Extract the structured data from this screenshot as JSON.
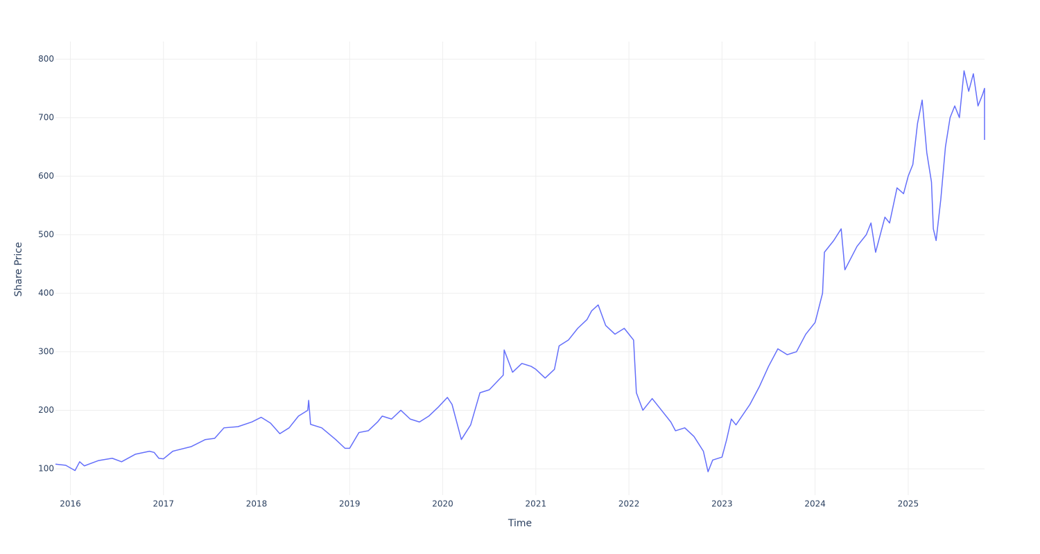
{
  "chart_data": {
    "type": "line",
    "x_label": "Time",
    "y_label": "Share Price",
    "xlim": [
      2015.84,
      2025.82
    ],
    "xticks": [
      2016,
      2017,
      2018,
      2019,
      2020,
      2021,
      2022,
      2023,
      2024,
      2025
    ],
    "ylim": [
      55,
      830
    ],
    "yticks": [
      100,
      200,
      300,
      400,
      500,
      600,
      700,
      800
    ],
    "grid": true,
    "series": [
      {
        "color": "#636efa",
        "x": [
          2015.84,
          2015.95,
          2016.05,
          2016.1,
          2016.15,
          2016.3,
          2016.45,
          2016.55,
          2016.7,
          2016.85,
          2016.9,
          2016.95,
          2017.0,
          2017.1,
          2017.3,
          2017.45,
          2017.55,
          2017.65,
          2017.8,
          2017.95,
          2018.05,
          2018.15,
          2018.25,
          2018.35,
          2018.45,
          2018.55,
          2018.56,
          2018.58,
          2018.7,
          2018.85,
          2018.95,
          2019.0,
          2019.1,
          2019.2,
          2019.3,
          2019.35,
          2019.45,
          2019.55,
          2019.65,
          2019.75,
          2019.85,
          2019.95,
          2020.05,
          2020.1,
          2020.2,
          2020.3,
          2020.4,
          2020.5,
          2020.65,
          2020.66,
          2020.75,
          2020.85,
          2020.95,
          2021.0,
          2021.1,
          2021.2,
          2021.25,
          2021.35,
          2021.45,
          2021.55,
          2021.6,
          2021.67,
          2021.75,
          2021.85,
          2021.95,
          2022.05,
          2022.08,
          2022.15,
          2022.25,
          2022.35,
          2022.45,
          2022.5,
          2022.6,
          2022.7,
          2022.8,
          2022.85,
          2022.9,
          2023.0,
          2023.05,
          2023.1,
          2023.15,
          2023.3,
          2023.4,
          2023.5,
          2023.6,
          2023.7,
          2023.8,
          2023.9,
          2024.0,
          2024.08,
          2024.1,
          2024.2,
          2024.28,
          2024.32,
          2024.45,
          2024.55,
          2024.6,
          2024.65,
          2024.75,
          2024.8,
          2024.88,
          2024.95,
          2025.0,
          2025.05,
          2025.1,
          2025.15,
          2025.2,
          2025.25,
          2025.27,
          2025.3,
          2025.35,
          2025.4,
          2025.45,
          2025.5,
          2025.55,
          2025.6,
          2025.65,
          2025.7,
          2025.75,
          2025.8,
          2025.82,
          2025.82
        ],
        "values": [
          108,
          106,
          97,
          112,
          105,
          114,
          118,
          112,
          125,
          130,
          128,
          118,
          117,
          130,
          138,
          150,
          152,
          170,
          172,
          180,
          188,
          178,
          160,
          170,
          190,
          200,
          217,
          176,
          170,
          150,
          135,
          135,
          162,
          165,
          180,
          190,
          185,
          200,
          185,
          180,
          190,
          205,
          222,
          210,
          150,
          175,
          230,
          235,
          260,
          303,
          265,
          280,
          275,
          270,
          255,
          270,
          310,
          320,
          340,
          355,
          370,
          380,
          345,
          330,
          340,
          320,
          230,
          200,
          220,
          200,
          180,
          165,
          170,
          155,
          130,
          95,
          115,
          120,
          150,
          185,
          175,
          210,
          240,
          275,
          305,
          295,
          300,
          330,
          350,
          400,
          470,
          490,
          510,
          440,
          480,
          500,
          520,
          470,
          530,
          520,
          580,
          570,
          600,
          620,
          690,
          730,
          640,
          590,
          510,
          490,
          560,
          650,
          700,
          720,
          700,
          780,
          745,
          775,
          720,
          740,
          750,
          662
        ]
      }
    ]
  }
}
